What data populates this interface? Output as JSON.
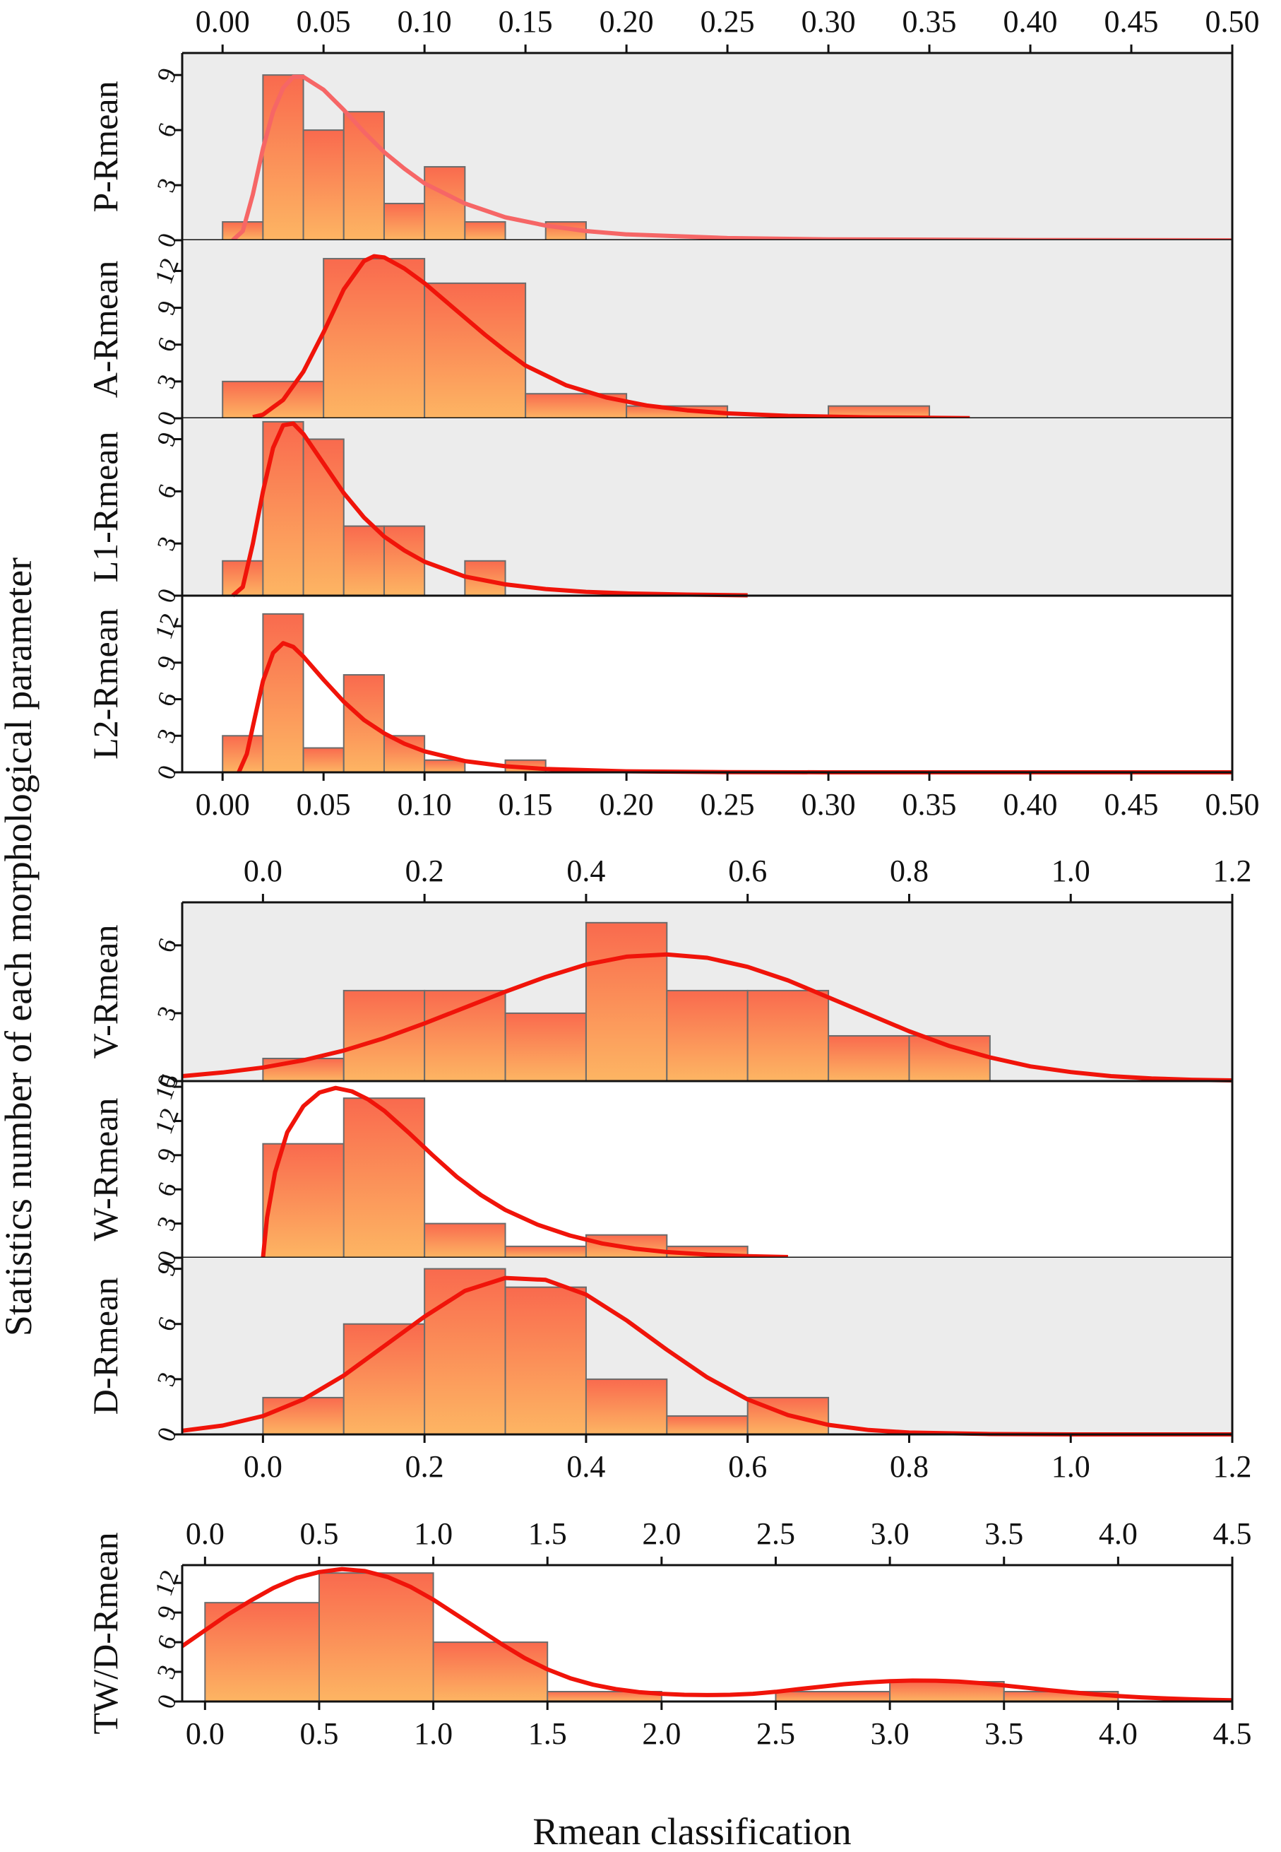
{
  "figure": {
    "ylabel": "Statistics number of each morphological parameter",
    "xlabel": "Rmean classification"
  },
  "colors": {
    "bar_top": "#f96a4e",
    "bar_bottom": "#fdb563",
    "bar_edge": "#6b6b6b",
    "curve": "#f0140a",
    "panel_bg": "#ececec"
  },
  "chart_data": [
    {
      "group": 1,
      "type": "bar",
      "label": "P-Rmean",
      "xlim": [
        -0.02,
        0.5
      ],
      "ylim": [
        0,
        10.2
      ],
      "yticks": [
        0,
        3,
        6,
        9
      ],
      "bg": true,
      "has_top_axis": true,
      "has_bottom_axis": false,
      "xticks": [
        "0.00",
        "0.05",
        "0.10",
        "0.15",
        "0.20",
        "0.25",
        "0.30",
        "0.35",
        "0.40",
        "0.45",
        "0.50"
      ],
      "bins": [
        [
          0.0,
          0.02,
          1
        ],
        [
          0.02,
          0.04,
          9
        ],
        [
          0.04,
          0.06,
          6
        ],
        [
          0.06,
          0.08,
          7
        ],
        [
          0.08,
          0.1,
          2
        ],
        [
          0.1,
          0.12,
          4
        ],
        [
          0.12,
          0.14,
          1
        ],
        [
          0.16,
          0.18,
          1
        ]
      ],
      "curve": [
        [
          0.005,
          0
        ],
        [
          0.01,
          0.5
        ],
        [
          0.015,
          2.5
        ],
        [
          0.02,
          5
        ],
        [
          0.025,
          7
        ],
        [
          0.03,
          8.3
        ],
        [
          0.035,
          8.9
        ],
        [
          0.04,
          8.9
        ],
        [
          0.05,
          8.2
        ],
        [
          0.06,
          7.1
        ],
        [
          0.07,
          5.9
        ],
        [
          0.08,
          4.8
        ],
        [
          0.09,
          3.9
        ],
        [
          0.1,
          3.1
        ],
        [
          0.12,
          2.0
        ],
        [
          0.14,
          1.25
        ],
        [
          0.16,
          0.8
        ],
        [
          0.18,
          0.5
        ],
        [
          0.2,
          0.32
        ],
        [
          0.25,
          0.12
        ],
        [
          0.3,
          0.05
        ],
        [
          0.4,
          0.01
        ],
        [
          0.5,
          0
        ]
      ],
      "curve_color": "#f66666"
    },
    {
      "group": 1,
      "type": "bar",
      "label": "A-Rmean",
      "xlim": [
        -0.02,
        0.5
      ],
      "ylim": [
        0,
        14.5
      ],
      "yticks": [
        0,
        3,
        6,
        9,
        12
      ],
      "bg": true,
      "has_top_axis": false,
      "has_bottom_axis": false,
      "bins": [
        [
          0.0,
          0.05,
          3
        ],
        [
          0.05,
          0.1,
          13
        ],
        [
          0.1,
          0.15,
          11
        ],
        [
          0.15,
          0.2,
          2
        ],
        [
          0.2,
          0.25,
          1
        ],
        [
          0.3,
          0.35,
          1
        ]
      ],
      "curve": [
        [
          0.015,
          0.1
        ],
        [
          0.02,
          0.3
        ],
        [
          0.03,
          1.5
        ],
        [
          0.04,
          3.8
        ],
        [
          0.05,
          7
        ],
        [
          0.06,
          10.5
        ],
        [
          0.07,
          12.8
        ],
        [
          0.075,
          13.2
        ],
        [
          0.08,
          13.1
        ],
        [
          0.09,
          12.2
        ],
        [
          0.1,
          11
        ],
        [
          0.11,
          9.6
        ],
        [
          0.12,
          8.2
        ],
        [
          0.13,
          6.8
        ],
        [
          0.14,
          5.5
        ],
        [
          0.15,
          4.3
        ],
        [
          0.17,
          2.7
        ],
        [
          0.19,
          1.7
        ],
        [
          0.21,
          1.05
        ],
        [
          0.23,
          0.65
        ],
        [
          0.25,
          0.4
        ],
        [
          0.28,
          0.2
        ],
        [
          0.32,
          0.08
        ],
        [
          0.37,
          0.02
        ]
      ],
      "curve_color": "#f0140a"
    },
    {
      "group": 1,
      "type": "bar",
      "label": "L1-Rmean",
      "xlim": [
        -0.02,
        0.5
      ],
      "ylim": [
        0,
        10.2
      ],
      "yticks": [
        0,
        3,
        6,
        9
      ],
      "bg": true,
      "has_top_axis": false,
      "has_bottom_axis": false,
      "bins": [
        [
          0.0,
          0.02,
          2
        ],
        [
          0.02,
          0.04,
          10
        ],
        [
          0.04,
          0.06,
          9
        ],
        [
          0.06,
          0.08,
          4
        ],
        [
          0.08,
          0.1,
          4
        ],
        [
          0.12,
          0.14,
          2
        ]
      ],
      "curve": [
        [
          0.005,
          0
        ],
        [
          0.01,
          0.5
        ],
        [
          0.015,
          3
        ],
        [
          0.02,
          6
        ],
        [
          0.025,
          8.5
        ],
        [
          0.03,
          9.8
        ],
        [
          0.035,
          9.9
        ],
        [
          0.04,
          9.3
        ],
        [
          0.05,
          7.6
        ],
        [
          0.06,
          5.9
        ],
        [
          0.07,
          4.5
        ],
        [
          0.08,
          3.4
        ],
        [
          0.09,
          2.6
        ],
        [
          0.1,
          1.95
        ],
        [
          0.12,
          1.1
        ],
        [
          0.14,
          0.65
        ],
        [
          0.16,
          0.38
        ],
        [
          0.18,
          0.22
        ],
        [
          0.2,
          0.13
        ],
        [
          0.23,
          0.06
        ],
        [
          0.26,
          0.02
        ]
      ],
      "curve_color": "#f0140a"
    },
    {
      "group": 1,
      "type": "bar",
      "label": "L2-Rmean",
      "xlim": [
        -0.02,
        0.5
      ],
      "ylim": [
        0,
        14.5
      ],
      "yticks": [
        0,
        3,
        6,
        9,
        12
      ],
      "bg": false,
      "has_top_axis": false,
      "has_bottom_axis": true,
      "xticks": [
        "0.00",
        "0.05",
        "0.10",
        "0.15",
        "0.20",
        "0.25",
        "0.30",
        "0.35",
        "0.40",
        "0.45",
        "0.50"
      ],
      "bins": [
        [
          0.0,
          0.02,
          3
        ],
        [
          0.02,
          0.04,
          13
        ],
        [
          0.04,
          0.06,
          2
        ],
        [
          0.06,
          0.08,
          8
        ],
        [
          0.08,
          0.1,
          3
        ],
        [
          0.1,
          0.12,
          1
        ],
        [
          0.14,
          0.16,
          1
        ]
      ],
      "curve": [
        [
          0.008,
          0
        ],
        [
          0.012,
          1.5
        ],
        [
          0.016,
          4.5
        ],
        [
          0.02,
          7.5
        ],
        [
          0.025,
          9.8
        ],
        [
          0.03,
          10.6
        ],
        [
          0.035,
          10.3
        ],
        [
          0.04,
          9.5
        ],
        [
          0.05,
          7.6
        ],
        [
          0.06,
          5.8
        ],
        [
          0.07,
          4.3
        ],
        [
          0.08,
          3.2
        ],
        [
          0.09,
          2.35
        ],
        [
          0.1,
          1.72
        ],
        [
          0.12,
          0.92
        ],
        [
          0.14,
          0.5
        ],
        [
          0.16,
          0.27
        ],
        [
          0.2,
          0.08
        ],
        [
          0.25,
          0.02
        ],
        [
          0.3,
          0
        ],
        [
          0.5,
          0
        ]
      ],
      "curve_color": "#f0140a"
    },
    {
      "group": 2,
      "type": "bar",
      "label": "V-Rmean",
      "xlim": [
        -0.1,
        1.2
      ],
      "ylim": [
        0,
        7.9
      ],
      "yticks": [
        0,
        3,
        6
      ],
      "bg": true,
      "has_top_axis": true,
      "has_bottom_axis": false,
      "xticks": [
        "0.0",
        "0.2",
        "0.4",
        "0.6",
        "0.8",
        "1.0",
        "1.2"
      ],
      "bins": [
        [
          0.0,
          0.1,
          1
        ],
        [
          0.1,
          0.2,
          4
        ],
        [
          0.2,
          0.3,
          4
        ],
        [
          0.3,
          0.4,
          3
        ],
        [
          0.4,
          0.5,
          7
        ],
        [
          0.5,
          0.6,
          4
        ],
        [
          0.6,
          0.7,
          4
        ],
        [
          0.7,
          0.8,
          2
        ],
        [
          0.8,
          0.9,
          2
        ]
      ],
      "curve": [
        [
          -0.1,
          0.22
        ],
        [
          -0.05,
          0.38
        ],
        [
          0.0,
          0.6
        ],
        [
          0.05,
          0.92
        ],
        [
          0.1,
          1.35
        ],
        [
          0.15,
          1.9
        ],
        [
          0.2,
          2.55
        ],
        [
          0.25,
          3.25
        ],
        [
          0.3,
          3.95
        ],
        [
          0.35,
          4.6
        ],
        [
          0.4,
          5.15
        ],
        [
          0.45,
          5.5
        ],
        [
          0.5,
          5.6
        ],
        [
          0.55,
          5.45
        ],
        [
          0.6,
          5.05
        ],
        [
          0.65,
          4.45
        ],
        [
          0.7,
          3.7
        ],
        [
          0.75,
          2.95
        ],
        [
          0.8,
          2.2
        ],
        [
          0.85,
          1.55
        ],
        [
          0.9,
          1.05
        ],
        [
          0.95,
          0.65
        ],
        [
          1.0,
          0.4
        ],
        [
          1.05,
          0.22
        ],
        [
          1.1,
          0.12
        ],
        [
          1.15,
          0.06
        ],
        [
          1.2,
          0.03
        ]
      ],
      "curve_color": "#f0140a"
    },
    {
      "group": 2,
      "type": "bar",
      "label": "W-Rmean",
      "xlim": [
        -0.1,
        1.2
      ],
      "ylim": [
        0,
        15.5
      ],
      "yticks": [
        0,
        3,
        6,
        9,
        12,
        15
      ],
      "bg": false,
      "has_top_axis": false,
      "has_bottom_axis": false,
      "bins": [
        [
          0.0,
          0.1,
          10
        ],
        [
          0.1,
          0.2,
          14
        ],
        [
          0.2,
          0.3,
          3
        ],
        [
          0.3,
          0.4,
          1
        ],
        [
          0.4,
          0.5,
          2
        ],
        [
          0.5,
          0.6,
          1
        ]
      ],
      "curve": [
        [
          0.0,
          0
        ],
        [
          0.005,
          3.5
        ],
        [
          0.015,
          7.5
        ],
        [
          0.03,
          11
        ],
        [
          0.05,
          13.3
        ],
        [
          0.07,
          14.5
        ],
        [
          0.09,
          14.9
        ],
        [
          0.11,
          14.6
        ],
        [
          0.13,
          13.9
        ],
        [
          0.15,
          12.9
        ],
        [
          0.18,
          11
        ],
        [
          0.21,
          9
        ],
        [
          0.24,
          7.1
        ],
        [
          0.27,
          5.5
        ],
        [
          0.3,
          4.2
        ],
        [
          0.34,
          2.9
        ],
        [
          0.38,
          1.95
        ],
        [
          0.42,
          1.25
        ],
        [
          0.46,
          0.8
        ],
        [
          0.5,
          0.5
        ],
        [
          0.55,
          0.28
        ],
        [
          0.6,
          0.14
        ],
        [
          0.65,
          0.06
        ]
      ],
      "curve_color": "#f0140a"
    },
    {
      "group": 2,
      "type": "bar",
      "label": "D-Rmean",
      "xlim": [
        -0.1,
        1.2
      ],
      "ylim": [
        0,
        9.6
      ],
      "yticks": [
        0,
        3,
        6,
        9
      ],
      "bg": true,
      "has_top_axis": false,
      "has_bottom_axis": true,
      "xticks": [
        "0.0",
        "0.2",
        "0.4",
        "0.6",
        "0.8",
        "1.0",
        "1.2"
      ],
      "bins": [
        [
          0.0,
          0.1,
          2
        ],
        [
          0.1,
          0.2,
          6
        ],
        [
          0.2,
          0.3,
          9
        ],
        [
          0.3,
          0.4,
          8
        ],
        [
          0.4,
          0.5,
          3
        ],
        [
          0.5,
          0.6,
          1
        ],
        [
          0.6,
          0.7,
          2
        ]
      ],
      "curve": [
        [
          -0.1,
          0.2
        ],
        [
          -0.05,
          0.48
        ],
        [
          0.0,
          1.0
        ],
        [
          0.05,
          1.9
        ],
        [
          0.1,
          3.2
        ],
        [
          0.15,
          4.8
        ],
        [
          0.2,
          6.4
        ],
        [
          0.25,
          7.8
        ],
        [
          0.3,
          8.5
        ],
        [
          0.35,
          8.4
        ],
        [
          0.4,
          7.6
        ],
        [
          0.45,
          6.2
        ],
        [
          0.5,
          4.6
        ],
        [
          0.55,
          3.1
        ],
        [
          0.6,
          1.9
        ],
        [
          0.65,
          1.05
        ],
        [
          0.7,
          0.52
        ],
        [
          0.75,
          0.24
        ],
        [
          0.8,
          0.1
        ],
        [
          0.9,
          0.02
        ],
        [
          1.0,
          0
        ],
        [
          1.2,
          0
        ]
      ],
      "curve_color": "#f0140a"
    },
    {
      "group": 3,
      "type": "bar",
      "label": "TW/D-Rmean",
      "xlim": [
        -0.1,
        4.5
      ],
      "ylim": [
        0,
        13.8
      ],
      "yticks": [
        0,
        3,
        6,
        9,
        12
      ],
      "bg": false,
      "has_top_axis": true,
      "has_bottom_axis": true,
      "xticks": [
        "0.0",
        "0.5",
        "1.0",
        "1.5",
        "2.0",
        "2.5",
        "3.0",
        "3.5",
        "4.0",
        "4.5"
      ],
      "bins": [
        [
          0.0,
          0.5,
          10
        ],
        [
          0.5,
          1.0,
          13
        ],
        [
          1.0,
          1.5,
          6
        ],
        [
          1.5,
          2.0,
          1
        ],
        [
          2.5,
          3.0,
          1
        ],
        [
          3.0,
          3.5,
          2
        ],
        [
          3.5,
          4.0,
          1
        ]
      ],
      "curve": [
        [
          -0.1,
          5.6
        ],
        [
          0.0,
          7.2
        ],
        [
          0.1,
          8.8
        ],
        [
          0.2,
          10.2
        ],
        [
          0.3,
          11.5
        ],
        [
          0.4,
          12.5
        ],
        [
          0.5,
          13.1
        ],
        [
          0.6,
          13.4
        ],
        [
          0.7,
          13.2
        ],
        [
          0.8,
          12.6
        ],
        [
          0.9,
          11.6
        ],
        [
          1.0,
          10.3
        ],
        [
          1.1,
          8.8
        ],
        [
          1.2,
          7.3
        ],
        [
          1.3,
          5.8
        ],
        [
          1.4,
          4.4
        ],
        [
          1.5,
          3.25
        ],
        [
          1.6,
          2.35
        ],
        [
          1.7,
          1.7
        ],
        [
          1.8,
          1.25
        ],
        [
          1.9,
          0.95
        ],
        [
          2.0,
          0.78
        ],
        [
          2.1,
          0.68
        ],
        [
          2.2,
          0.65
        ],
        [
          2.3,
          0.68
        ],
        [
          2.4,
          0.78
        ],
        [
          2.5,
          0.98
        ],
        [
          2.6,
          1.25
        ],
        [
          2.7,
          1.5
        ],
        [
          2.8,
          1.75
        ],
        [
          2.9,
          1.93
        ],
        [
          3.0,
          2.05
        ],
        [
          3.1,
          2.12
        ],
        [
          3.2,
          2.1
        ],
        [
          3.3,
          2.02
        ],
        [
          3.4,
          1.85
        ],
        [
          3.5,
          1.62
        ],
        [
          3.6,
          1.38
        ],
        [
          3.7,
          1.14
        ],
        [
          3.8,
          0.92
        ],
        [
          3.9,
          0.72
        ],
        [
          4.0,
          0.56
        ],
        [
          4.1,
          0.42
        ],
        [
          4.2,
          0.32
        ],
        [
          4.3,
          0.24
        ],
        [
          4.4,
          0.17
        ],
        [
          4.5,
          0.12
        ]
      ],
      "curve_color": "#f0140a"
    }
  ]
}
